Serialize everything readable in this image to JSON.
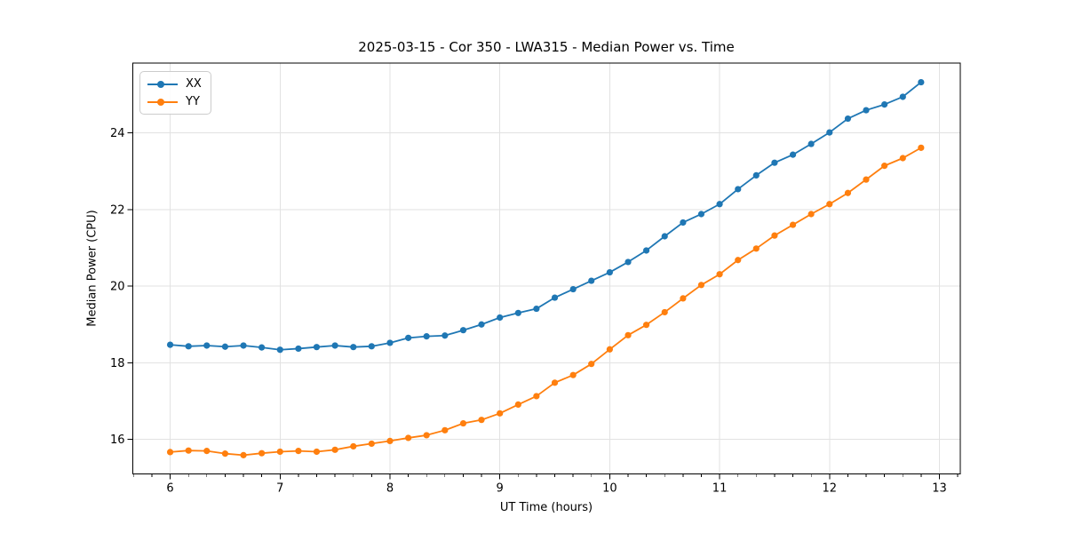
{
  "chart_data": {
    "type": "line",
    "title": "2025-03-15 - Cor 350 - LWA315 - Median Power vs. Time",
    "xlabel": "UT Time (hours)",
    "ylabel": "Median Power (CPU)",
    "xlim": [
      5.66,
      13.19
    ],
    "ylim": [
      15.1,
      25.82
    ],
    "xticks": [
      6,
      7,
      8,
      9,
      10,
      11,
      12,
      13
    ],
    "yticks": [
      16,
      18,
      20,
      22,
      24
    ],
    "minor_xticks_per_major": 6,
    "grid": true,
    "grid_color": "#e2e2e2",
    "legend_position": "upper-left",
    "x": [
      6.0,
      6.167,
      6.333,
      6.5,
      6.667,
      6.833,
      7.0,
      7.167,
      7.333,
      7.5,
      7.667,
      7.833,
      8.0,
      8.167,
      8.333,
      8.5,
      8.667,
      8.833,
      9.0,
      9.167,
      9.333,
      9.5,
      9.667,
      9.833,
      10.0,
      10.167,
      10.333,
      10.5,
      10.667,
      10.833,
      11.0,
      11.167,
      11.333,
      11.5,
      11.667,
      11.833,
      12.0,
      12.167,
      12.333,
      12.5,
      12.667,
      12.833
    ],
    "series": [
      {
        "name": "XX",
        "color": "#1f77b4",
        "values": [
          18.47,
          18.43,
          18.45,
          18.42,
          18.45,
          18.4,
          18.34,
          18.37,
          18.41,
          18.45,
          18.41,
          18.43,
          18.52,
          18.65,
          18.69,
          18.71,
          18.85,
          19.0,
          19.18,
          19.3,
          19.41,
          19.7,
          19.92,
          20.14,
          20.36,
          20.63,
          20.93,
          21.3,
          21.66,
          21.88,
          22.14,
          22.53,
          22.89,
          23.22,
          23.43,
          23.71,
          24.01,
          24.37,
          24.59,
          24.74,
          24.94,
          25.32
        ]
      },
      {
        "name": "YY",
        "color": "#ff7f0e",
        "values": [
          15.67,
          15.71,
          15.7,
          15.63,
          15.59,
          15.64,
          15.68,
          15.7,
          15.68,
          15.73,
          15.82,
          15.89,
          15.96,
          16.04,
          16.11,
          16.24,
          16.42,
          16.51,
          16.68,
          16.91,
          17.13,
          17.48,
          17.68,
          17.97,
          18.35,
          18.72,
          18.99,
          19.32,
          19.68,
          20.03,
          20.31,
          20.68,
          20.98,
          21.32,
          21.6,
          21.88,
          22.14,
          22.43,
          22.78,
          23.14,
          23.34,
          23.61
        ]
      }
    ]
  }
}
